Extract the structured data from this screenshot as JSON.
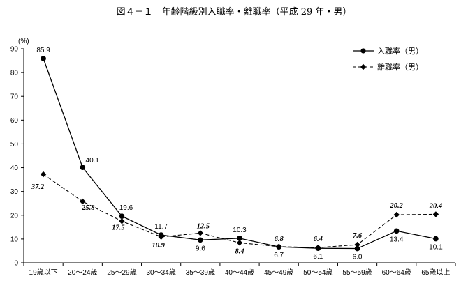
{
  "chart_data": {
    "type": "line",
    "title": "図４－１　年齢階級別入職率・離職率（平成 29 年・男）",
    "y_unit": "(%)",
    "ylim": [
      0,
      90
    ],
    "yticks": [
      0,
      10,
      20,
      30,
      40,
      50,
      60,
      70,
      80,
      90
    ],
    "grid": false,
    "legend_position": "top-right",
    "categories": [
      "19歳以下",
      "20～24歳",
      "25～29歳",
      "30～34歳",
      "35～39歳",
      "40～44歳",
      "45～49歳",
      "50～54歳",
      "55～59歳",
      "60～64歳",
      "65歳以上"
    ],
    "series": [
      {
        "name": "入職率（男）",
        "values": [
          85.9,
          40.1,
          19.6,
          11.7,
          9.6,
          10.3,
          6.7,
          6.1,
          6.0,
          13.4,
          10.1
        ],
        "labels": [
          "85.9",
          "40.1",
          "19.6",
          "11.7",
          "9.6",
          "10.3",
          "6.7",
          "6.1",
          "6.0",
          "13.4",
          "10.1"
        ],
        "style": "solid",
        "marker": "circle",
        "color": "#000000"
      },
      {
        "name": "離職率（男）",
        "values": [
          37.2,
          25.8,
          17.5,
          10.9,
          12.5,
          8.4,
          6.8,
          6.4,
          7.6,
          20.2,
          20.4
        ],
        "labels": [
          "37.2",
          "25.8",
          "17.5",
          "10.9",
          "12.5",
          "8.4",
          "6.8",
          "6.4",
          "7.6",
          "20.2",
          "20.4"
        ],
        "style": "dashed",
        "marker": "diamond",
        "color": "#000000"
      }
    ]
  }
}
